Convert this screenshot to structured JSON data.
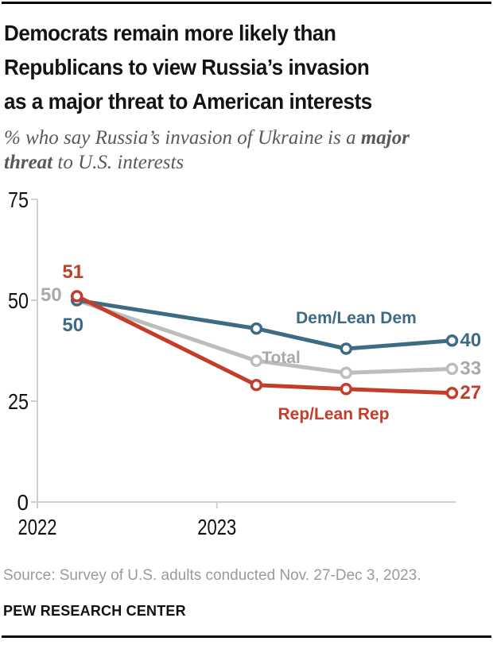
{
  "colors": {
    "dem_blue": "#3d6a84",
    "total_gray_line": "#bdbdbd",
    "total_gray_text": "#a9a9a9",
    "rep_red": "#c43d2a",
    "axis": "#cfcfcf",
    "axis_text": "#111111",
    "title_text": "#141414",
    "subtitle_text": "#595959",
    "source_text": "#9a9a9a",
    "rule": "#000000"
  },
  "header": {
    "title_lines": [
      "Democrats remain more likely than",
      "Republicans to view Russia’s invasion",
      "as a major threat to American interests"
    ],
    "subtitle_line1_regular": "% who say Russia’s invasion of Ukraine is a ",
    "subtitle_line1_bold": "major",
    "subtitle_line2_bold": "threat",
    "subtitle_line2_regular": " to U.S. interests"
  },
  "chart_data": {
    "type": "line",
    "title": "% who say Russia’s invasion of Ukraine is a major threat to U.S. interests",
    "x_unit": "year",
    "x": [
      2022.22,
      2023.22,
      2023.72,
      2024.31
    ],
    "x_axis": {
      "range": [
        2022,
        2024.33
      ],
      "ticks": [
        {
          "label": "2022",
          "value": 2022
        },
        {
          "label": "2023",
          "value": 2023
        }
      ]
    },
    "y_axis": {
      "range": [
        0,
        75
      ],
      "ticks": [
        {
          "label": "0",
          "value": 0
        },
        {
          "label": "25",
          "value": 25
        },
        {
          "label": "50",
          "value": 50
        },
        {
          "label": "75",
          "value": 75
        }
      ]
    },
    "grid": false,
    "legend_position": "inline",
    "series": [
      {
        "name": "Total",
        "values": [
          50,
          35,
          32,
          33
        ],
        "start_label": "50",
        "end_label": "33",
        "line_color": "#bdbdbd",
        "text_color": "#a9a9a9",
        "name_at": {
          "x": 2023.25,
          "y": 34.4
        },
        "start_label_offset": {
          "dx": -19,
          "dy": 1,
          "anchor": "end"
        }
      },
      {
        "name": "Dem/Lean Dem",
        "values": [
          50,
          43,
          38,
          40
        ],
        "start_label": "50",
        "end_label": "40",
        "line_color": "#3d6a84",
        "text_color": "#3d6a84",
        "name_at": {
          "x": 2023.44,
          "y": 44.3
        },
        "start_label_offset": {
          "dx": -5,
          "dy": 39,
          "anchor": "middle"
        }
      },
      {
        "name": "Rep/Lean Rep",
        "values": [
          51,
          29,
          28,
          27
        ],
        "start_label": "51",
        "end_label": "27",
        "line_color": "#c43d2a",
        "text_color": "#c43d2a",
        "name_at": {
          "x": 2023.34,
          "y": 20.5
        },
        "start_label_offset": {
          "dx": -5,
          "dy": -23,
          "anchor": "middle"
        }
      }
    ]
  },
  "footer": {
    "source": "Source: Survey of U.S. adults conducted Nov. 27-Dec 3, 2023.",
    "brand": "PEW RESEARCH CENTER"
  }
}
